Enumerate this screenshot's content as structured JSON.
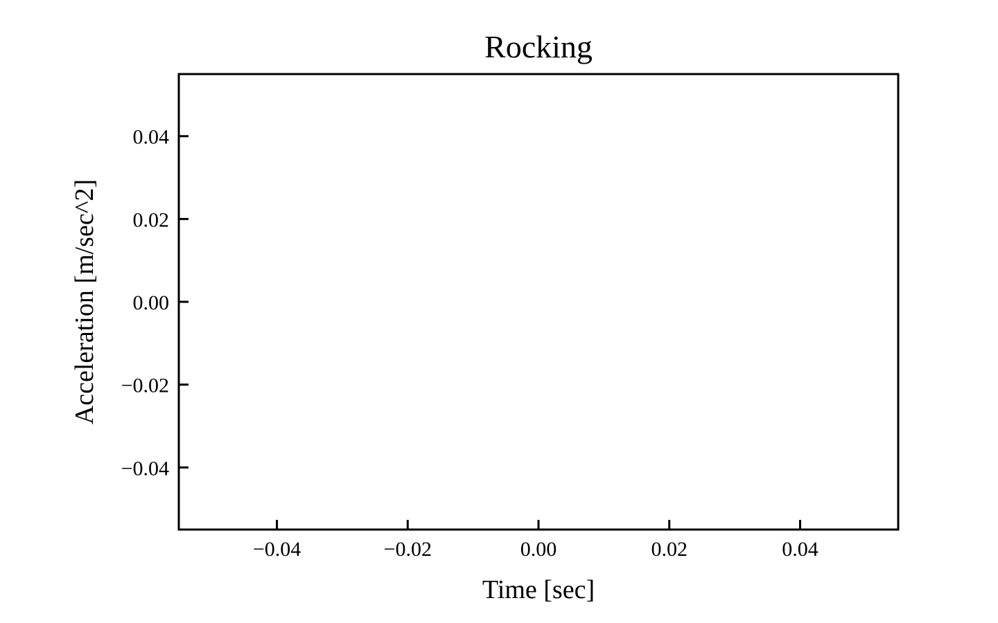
{
  "chart_data": {
    "type": "line",
    "title": "Rocking",
    "xlabel": "Time [sec]",
    "ylabel": "Acceleration [m/sec^2]",
    "xlim": [
      -0.055,
      0.055
    ],
    "ylim": [
      -0.055,
      0.055
    ],
    "x_ticks": [
      {
        "value": -0.04,
        "label": "−0.04"
      },
      {
        "value": -0.02,
        "label": "−0.02"
      },
      {
        "value": 0.0,
        "label": "0.00"
      },
      {
        "value": 0.02,
        "label": "0.02"
      },
      {
        "value": 0.04,
        "label": "0.04"
      }
    ],
    "y_ticks": [
      {
        "value": 0.04,
        "label": "0.04"
      },
      {
        "value": 0.02,
        "label": "0.02"
      },
      {
        "value": 0.0,
        "label": "0.00"
      },
      {
        "value": -0.02,
        "label": "−0.02"
      },
      {
        "value": -0.04,
        "label": "−0.04"
      }
    ],
    "series": [],
    "grid": false,
    "tick_direction": "in",
    "colors": {
      "axes": "#000000",
      "background": "#ffffff"
    }
  }
}
